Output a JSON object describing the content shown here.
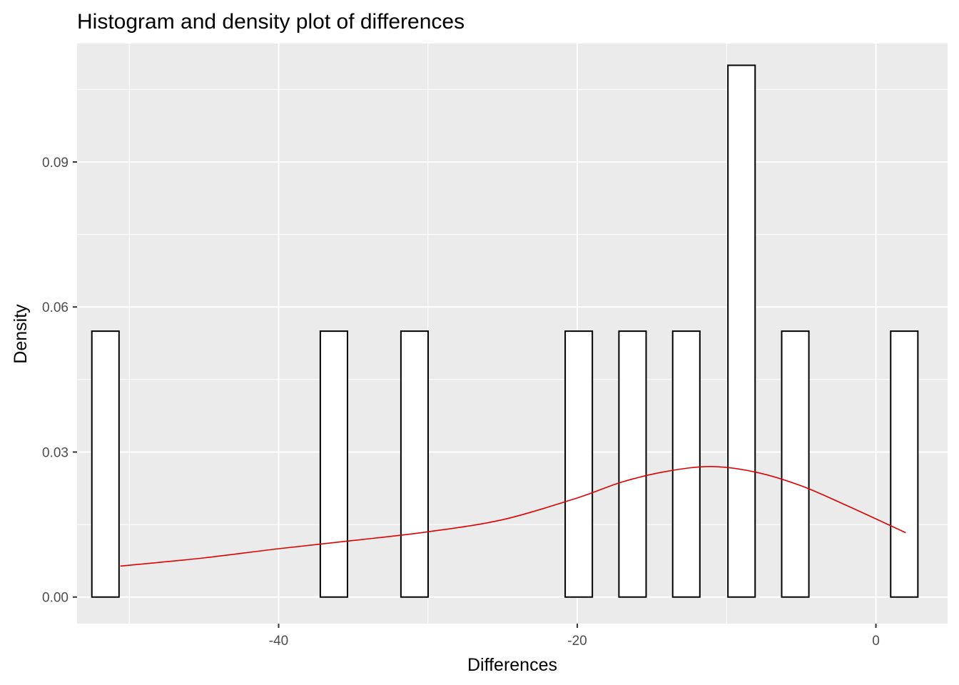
{
  "chart_data": {
    "type": "bar",
    "title": "Histogram and density plot of differences",
    "xlabel": "Differences",
    "ylabel": "Density",
    "xlim": [
      -53.5,
      4.8
    ],
    "ylim": [
      -0.0055,
      0.1145
    ],
    "x_ticks": [
      -40,
      -20,
      0
    ],
    "x_tick_labels": [
      "-40",
      "-20",
      "0"
    ],
    "x_minor_ticks": [
      -50,
      -30,
      -10
    ],
    "y_ticks": [
      0.0,
      0.03,
      0.06,
      0.09
    ],
    "y_tick_labels": [
      "0.00",
      "0.03",
      "0.06",
      "0.09"
    ],
    "y_minor_ticks": [
      0.015,
      0.045,
      0.075,
      0.105
    ],
    "bin_width": 1.82,
    "bins": [
      {
        "x": -51.6,
        "density": 0.055
      },
      {
        "x": -36.3,
        "density": 0.055
      },
      {
        "x": -30.9,
        "density": 0.055
      },
      {
        "x": -19.9,
        "density": 0.055
      },
      {
        "x": -16.3,
        "density": 0.055
      },
      {
        "x": -12.7,
        "density": 0.055
      },
      {
        "x": -9.0,
        "density": 0.11
      },
      {
        "x": -5.4,
        "density": 0.055
      },
      {
        "x": 1.9,
        "density": 0.055
      }
    ],
    "density_curve": {
      "color": "#e00000",
      "x": [
        -50.6,
        -45,
        -40,
        -35,
        -30,
        -25,
        -20,
        -17,
        -14,
        -11,
        -8,
        -5,
        -2,
        2.0
      ],
      "y": [
        0.0064,
        0.0081,
        0.01,
        0.0117,
        0.0135,
        0.016,
        0.0205,
        0.0238,
        0.026,
        0.027,
        0.0258,
        0.023,
        0.019,
        0.0133
      ]
    },
    "grid": true,
    "panel_background": "#ebebeb",
    "grid_color": "#ffffff",
    "bar_fill": "#ffffff",
    "bar_stroke": "#000000"
  }
}
